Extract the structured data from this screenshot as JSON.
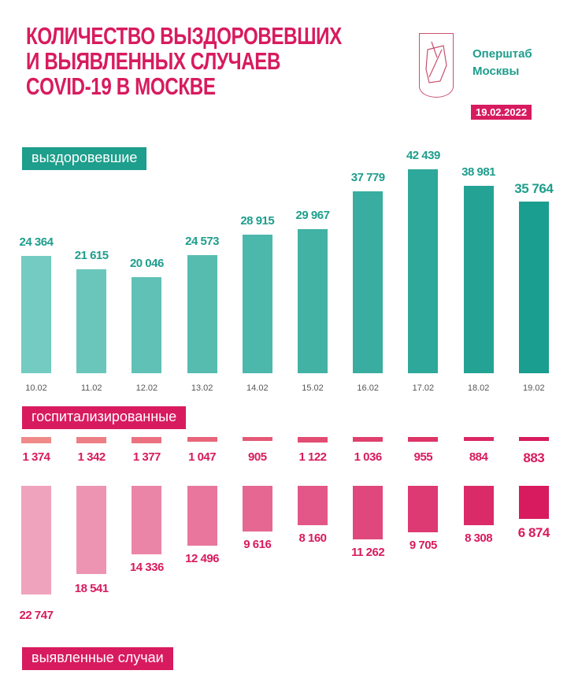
{
  "header": {
    "title": "КОЛИЧЕСТВО ВЫЗДОРОВЕВШИХ\nИ ВЫЯВЛЕННЫХ СЛУЧАЕВ\nCOVID-19 В МОСКВЕ",
    "org": "Оперштаб\nМосквы",
    "date": "19.02.2022",
    "logo": "moscow-coat-of-arms"
  },
  "colors": {
    "title": "#d81b5e",
    "recovered_light": "#74cbc1",
    "recovered_dark": "#1a9e8f",
    "cases_light": "#f0a3bc",
    "cases_dark": "#d81b5e",
    "hosp_light": "#f08a8a"
  },
  "chart_data": {
    "type": "bar",
    "categories": [
      "10.02",
      "11.02",
      "12.02",
      "13.02",
      "14.02",
      "15.02",
      "16.02",
      "17.02",
      "18.02",
      "19.02"
    ],
    "series": [
      {
        "name": "выздоровевшие",
        "values": [
          24364,
          21615,
          20046,
          24573,
          28915,
          29967,
          37779,
          42439,
          38981,
          35764
        ],
        "labels": [
          "24 364",
          "21 615",
          "20 046",
          "24 573",
          "28 915",
          "29 967",
          "37 779",
          "42 439",
          "38 981",
          "35 764"
        ]
      },
      {
        "name": "госпитализированные",
        "values": [
          1374,
          1342,
          1377,
          1047,
          905,
          1122,
          1036,
          955,
          884,
          883
        ],
        "labels": [
          "1 374",
          "1 342",
          "1 377",
          "1 047",
          "905",
          "1 122",
          "1 036",
          "955",
          "884",
          "883"
        ]
      },
      {
        "name": "выявленные случаи",
        "values": [
          22747,
          18541,
          14336,
          12496,
          9616,
          8160,
          11262,
          9705,
          8308,
          6874
        ],
        "labels": [
          "22 747",
          "18 541",
          "14 336",
          "12 496",
          "9 616",
          "8 160",
          "11 262",
          "9 705",
          "8 308",
          "6 874"
        ]
      }
    ]
  }
}
